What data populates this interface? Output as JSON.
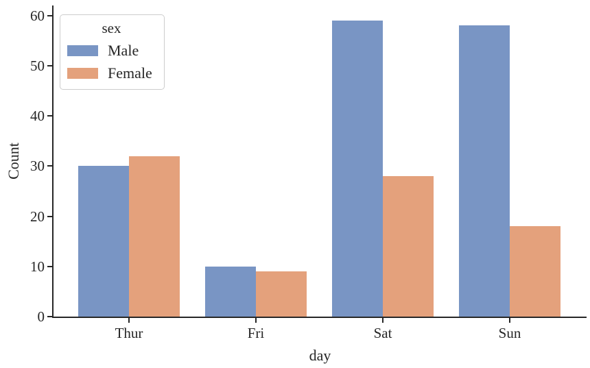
{
  "chart_data": {
    "type": "bar",
    "title": "",
    "xlabel": "day",
    "ylabel": "Count",
    "categories": [
      "Thur",
      "Fri",
      "Sat",
      "Sun"
    ],
    "series": [
      {
        "name": "Male",
        "color": "#7995C4",
        "values": [
          30,
          10,
          59,
          58
        ]
      },
      {
        "name": "Female",
        "color": "#E4A17C",
        "values": [
          32,
          9,
          28,
          18
        ]
      }
    ],
    "yticks": [
      0,
      10,
      20,
      30,
      40,
      50,
      60
    ],
    "ylim": [
      0,
      62
    ],
    "grid": false,
    "legend": {
      "title": "sex",
      "position": "upper left",
      "entries": [
        "Male",
        "Female"
      ]
    },
    "colors": {
      "text": "#262626",
      "spine": "#262626",
      "legend_border": "#cccccc"
    }
  }
}
